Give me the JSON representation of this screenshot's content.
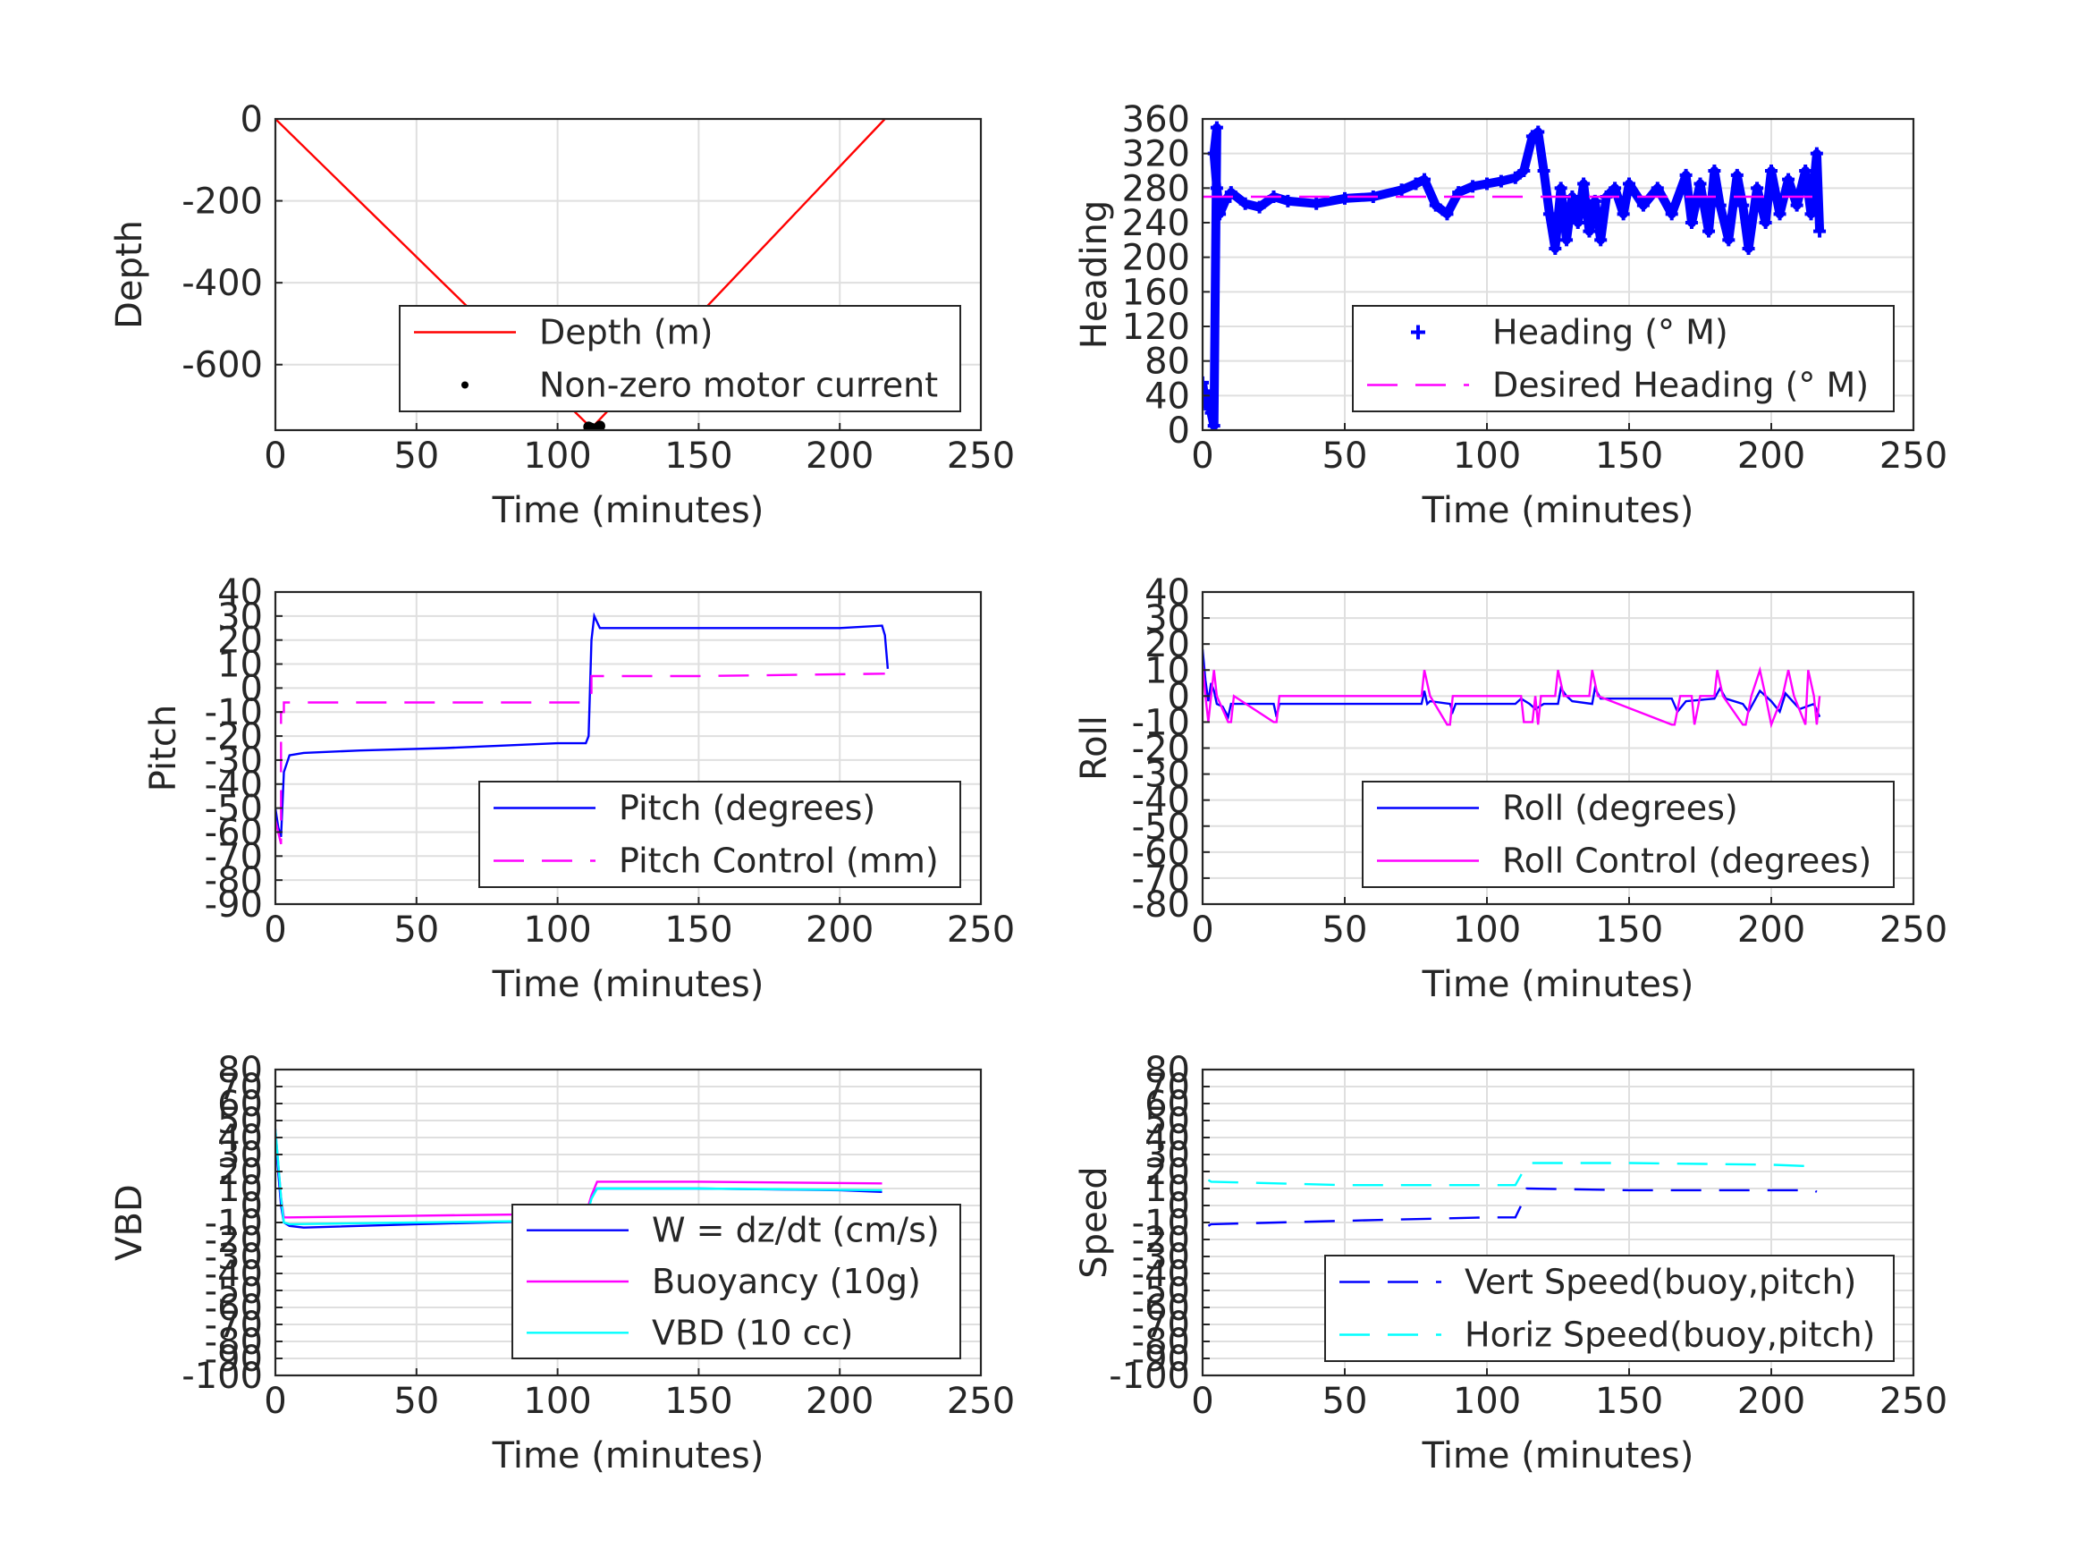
{
  "chart_data": [
    {
      "id": "depth",
      "type": "line",
      "xlabel": "Time (minutes)",
      "ylabel": "Depth",
      "xlim": [
        0,
        250
      ],
      "ylim": [
        -760,
        0
      ],
      "xticks": [
        "0",
        "50",
        "100",
        "150",
        "200",
        "250"
      ],
      "yticks": [
        {
          "value": 0,
          "label": "0"
        },
        {
          "value": -200,
          "label": "-200"
        },
        {
          "value": -400,
          "label": "-400"
        },
        {
          "value": -600,
          "label": "-600"
        }
      ],
      "grid": true,
      "legend_position": "bottom-right",
      "series": [
        {
          "name": "Depth (m)",
          "color": "#ff0000",
          "style": "solid",
          "x": [
            0,
            112,
            216
          ],
          "y": [
            0,
            -755,
            0
          ]
        },
        {
          "name": "Non-zero motor current",
          "color": "#000000",
          "style": "dot",
          "x": [
            111,
            112,
            113,
            114,
            115
          ],
          "y": [
            -752,
            -755,
            -757,
            -755,
            -750
          ]
        }
      ]
    },
    {
      "id": "heading",
      "type": "scatter",
      "xlabel": "Time (minutes)",
      "ylabel": "Heading",
      "xlim": [
        0,
        250
      ],
      "ylim": [
        0,
        360
      ],
      "xticks": [
        "0",
        "50",
        "100",
        "150",
        "200",
        "250"
      ],
      "yticks": [
        {
          "value": 0,
          "label": "0"
        },
        {
          "value": 40,
          "label": "40"
        },
        {
          "value": 80,
          "label": "80"
        },
        {
          "value": 120,
          "label": "120"
        },
        {
          "value": 160,
          "label": "160"
        },
        {
          "value": 200,
          "label": "200"
        },
        {
          "value": 240,
          "label": "240"
        },
        {
          "value": 280,
          "label": "280"
        },
        {
          "value": 320,
          "label": "320"
        },
        {
          "value": 360,
          "label": "360"
        }
      ],
      "grid": true,
      "legend_position": "bottom-right",
      "series": [
        {
          "name": "Heading (° M)",
          "color": "#0000ff",
          "style": "plus",
          "x": [
            0,
            1,
            2,
            3,
            4,
            5,
            4,
            5,
            6,
            8,
            10,
            15,
            20,
            25,
            30,
            40,
            50,
            60,
            70,
            75,
            78,
            82,
            86,
            90,
            95,
            100,
            105,
            110,
            113,
            116,
            118,
            120,
            122,
            124,
            126,
            128,
            130,
            132,
            134,
            136,
            138,
            140,
            142,
            145,
            148,
            150,
            155,
            160,
            165,
            170,
            172,
            175,
            178,
            180,
            182,
            185,
            188,
            190,
            192,
            195,
            198,
            200,
            203,
            206,
            209,
            212,
            214,
            216,
            217
          ],
          "y": [
            55,
            30,
            40,
            20,
            5,
            350,
            320,
            280,
            250,
            265,
            275,
            262,
            258,
            270,
            265,
            262,
            268,
            270,
            278,
            285,
            290,
            260,
            250,
            275,
            282,
            285,
            288,
            292,
            300,
            340,
            345,
            300,
            250,
            210,
            280,
            220,
            270,
            240,
            285,
            230,
            265,
            220,
            270,
            280,
            250,
            285,
            260,
            280,
            250,
            295,
            240,
            285,
            230,
            300,
            260,
            220,
            295,
            260,
            210,
            280,
            240,
            300,
            250,
            290,
            260,
            300,
            250,
            320,
            230
          ]
        },
        {
          "name": "Desired Heading (° M)",
          "color": "#ff00ff",
          "style": "dash",
          "x": [
            0,
            216
          ],
          "y": [
            270,
            270
          ]
        }
      ]
    },
    {
      "id": "pitch",
      "type": "line",
      "xlabel": "Time (minutes)",
      "ylabel": "Pitch",
      "xlim": [
        0,
        250
      ],
      "ylim": [
        -90,
        40
      ],
      "xticks": [
        "0",
        "50",
        "100",
        "150",
        "200",
        "250"
      ],
      "yticks": [
        {
          "value": 40,
          "label": "40"
        },
        {
          "value": 30,
          "label": "30"
        },
        {
          "value": 20,
          "label": "20"
        },
        {
          "value": 10,
          "label": "10"
        },
        {
          "value": 0,
          "label": "0"
        },
        {
          "value": -10,
          "label": "-10"
        },
        {
          "value": -20,
          "label": "-20"
        },
        {
          "value": -30,
          "label": "-30"
        },
        {
          "value": -40,
          "label": "-40"
        },
        {
          "value": -50,
          "label": "-50"
        },
        {
          "value": -60,
          "label": "-60"
        },
        {
          "value": -70,
          "label": "-70"
        },
        {
          "value": -80,
          "label": "-80"
        },
        {
          "value": -90,
          "label": "-90"
        }
      ],
      "grid": true,
      "legend_position": "bottom-right",
      "series": [
        {
          "name": "Pitch (degrees)",
          "color": "#0000ff",
          "style": "solid",
          "x": [
            0,
            1,
            2,
            3,
            5,
            10,
            30,
            60,
            80,
            100,
            110,
            111,
            112,
            113,
            115,
            130,
            160,
            200,
            215,
            216,
            217
          ],
          "y": [
            -50,
            -58,
            -62,
            -35,
            -28,
            -27,
            -26,
            -25,
            -24,
            -23,
            -23,
            -20,
            20,
            30,
            25,
            25,
            25,
            25,
            26,
            22,
            8
          ]
        },
        {
          "name": "Pitch Control (mm)",
          "color": "#ff00ff",
          "style": "dash",
          "x": [
            0,
            2,
            2,
            3,
            3,
            110,
            111,
            112,
            112,
            113,
            150,
            216
          ],
          "y": [
            -55,
            -65,
            -10,
            -10,
            -6,
            -6,
            -6,
            -2,
            5,
            5,
            5,
            6
          ]
        }
      ]
    },
    {
      "id": "roll",
      "type": "line",
      "xlabel": "Time (minutes)",
      "ylabel": "Roll",
      "xlim": [
        0,
        250
      ],
      "ylim": [
        -80,
        40
      ],
      "xticks": [
        "0",
        "50",
        "100",
        "150",
        "200",
        "250"
      ],
      "yticks": [
        {
          "value": 40,
          "label": "40"
        },
        {
          "value": 30,
          "label": "30"
        },
        {
          "value": 20,
          "label": "20"
        },
        {
          "value": 10,
          "label": "10"
        },
        {
          "value": 0,
          "label": "0"
        },
        {
          "value": -10,
          "label": "-10"
        },
        {
          "value": -20,
          "label": "-20"
        },
        {
          "value": -30,
          "label": "-30"
        },
        {
          "value": -40,
          "label": "-40"
        },
        {
          "value": -50,
          "label": "-50"
        },
        {
          "value": -60,
          "label": "-60"
        },
        {
          "value": -70,
          "label": "-70"
        },
        {
          "value": -80,
          "label": "-80"
        }
      ],
      "grid": true,
      "legend_position": "bottom-right",
      "series": [
        {
          "name": "Roll (degrees)",
          "color": "#0000ff",
          "style": "solid",
          "x": [
            0,
            1,
            2,
            3,
            4,
            5,
            7,
            9,
            10,
            25,
            26,
            27,
            77,
            78,
            79,
            80,
            87,
            88,
            89,
            110,
            112,
            115,
            117,
            120,
            125,
            126,
            128,
            130,
            137,
            138,
            140,
            165,
            167,
            170,
            180,
            182,
            184,
            190,
            192,
            196,
            200,
            203,
            205,
            210,
            215,
            217
          ],
          "y": [
            18,
            6,
            -2,
            5,
            2,
            -3,
            -4,
            -8,
            -3,
            -3,
            -8,
            -3,
            -3,
            2,
            -3,
            -2,
            -3,
            -6,
            -3,
            -3,
            -1,
            -3,
            -5,
            -3,
            -3,
            3,
            0,
            -2,
            -3,
            3,
            -1,
            -1,
            -6,
            -2,
            -1,
            3,
            -1,
            -3,
            -6,
            2,
            -2,
            -6,
            1,
            -5,
            -3,
            -8
          ]
        },
        {
          "name": "Roll Control (degrees)",
          "color": "#ff00ff",
          "style": "solid",
          "x": [
            0,
            1,
            2,
            3,
            4,
            5,
            9,
            10,
            11,
            25,
            26,
            27,
            77,
            78,
            80,
            86,
            87,
            88,
            112,
            113,
            116,
            117,
            118,
            119,
            124,
            125,
            127,
            136,
            137,
            139,
            165,
            166,
            168,
            172,
            173,
            175,
            180,
            181,
            183,
            190,
            191,
            193,
            196,
            198,
            200,
            204,
            206,
            208,
            212,
            213,
            215,
            216,
            217
          ],
          "y": [
            12,
            0,
            -10,
            0,
            10,
            0,
            -10,
            -10,
            0,
            -10,
            -10,
            0,
            0,
            10,
            0,
            -11,
            -11,
            0,
            0,
            -10,
            -10,
            0,
            -11,
            0,
            0,
            10,
            0,
            0,
            10,
            0,
            -11,
            -11,
            0,
            0,
            -11,
            0,
            0,
            10,
            0,
            -11,
            -11,
            0,
            10,
            0,
            -11,
            0,
            10,
            0,
            -11,
            10,
            0,
            -11,
            0
          ]
        }
      ]
    },
    {
      "id": "vbd",
      "type": "line",
      "xlabel": "Time (minutes)",
      "ylabel": "VBD",
      "xlim": [
        0,
        250
      ],
      "ylim": [
        -100,
        80
      ],
      "xticks": [
        "0",
        "50",
        "100",
        "150",
        "200",
        "250"
      ],
      "yticks": [
        {
          "value": 80,
          "label": "80"
        },
        {
          "value": 70,
          "label": "70"
        },
        {
          "value": 60,
          "label": "60"
        },
        {
          "value": 50,
          "label": "50"
        },
        {
          "value": 40,
          "label": "40"
        },
        {
          "value": 30,
          "label": "30"
        },
        {
          "value": 20,
          "label": "20"
        },
        {
          "value": 10,
          "label": "10"
        },
        {
          "value": 0,
          "label": "0"
        },
        {
          "value": -10,
          "label": "-10"
        },
        {
          "value": -20,
          "label": "-20"
        },
        {
          "value": -30,
          "label": "-30"
        },
        {
          "value": -40,
          "label": "-40"
        },
        {
          "value": -50,
          "label": "-50"
        },
        {
          "value": -60,
          "label": "-60"
        },
        {
          "value": -70,
          "label": "-70"
        },
        {
          "value": -80,
          "label": "-80"
        },
        {
          "value": -90,
          "label": "-90"
        },
        {
          "value": -100,
          "label": "-100"
        }
      ],
      "grid": true,
      "legend_position": "bottom-right",
      "series": [
        {
          "name": "W = dz/dt (cm/s)",
          "color": "#0000ff",
          "style": "solid",
          "x": [
            0,
            2,
            3,
            5,
            10,
            50,
            100,
            110,
            112,
            114,
            120,
            150,
            200,
            215
          ],
          "y": [
            40,
            0,
            -10,
            -12,
            -13,
            -11,
            -9,
            -8,
            5,
            10,
            10,
            10,
            9,
            8
          ]
        },
        {
          "name": "Buoyancy (10g)",
          "color": "#ff00ff",
          "style": "solid",
          "x": [
            0,
            2,
            3,
            5,
            50,
            100,
            110,
            112,
            114,
            150,
            215
          ],
          "y": [
            45,
            5,
            -7,
            -7,
            -6,
            -5,
            -5,
            6,
            14,
            14,
            13
          ]
        },
        {
          "name": "VBD (10 cc)",
          "color": "#00ffff",
          "style": "solid",
          "x": [
            0,
            2,
            3,
            5,
            50,
            100,
            110,
            112,
            114,
            150,
            215
          ],
          "y": [
            45,
            5,
            -10,
            -11,
            -10,
            -9,
            -8,
            4,
            10,
            10,
            9
          ]
        }
      ]
    },
    {
      "id": "speed",
      "type": "line",
      "xlabel": "Time (minutes)",
      "ylabel": "Speed",
      "xlim": [
        0,
        250
      ],
      "ylim": [
        -100,
        80
      ],
      "xticks": [
        "0",
        "50",
        "100",
        "150",
        "200",
        "250"
      ],
      "yticks": [
        {
          "value": 80,
          "label": "80"
        },
        {
          "value": 70,
          "label": "70"
        },
        {
          "value": 60,
          "label": "60"
        },
        {
          "value": 50,
          "label": "50"
        },
        {
          "value": 40,
          "label": "40"
        },
        {
          "value": 30,
          "label": "30"
        },
        {
          "value": 20,
          "label": "20"
        },
        {
          "value": 10,
          "label": "10"
        },
        {
          "value": 0,
          "label": "0"
        },
        {
          "value": -10,
          "label": "-10"
        },
        {
          "value": -20,
          "label": "-20"
        },
        {
          "value": -30,
          "label": "-30"
        },
        {
          "value": -40,
          "label": "-40"
        },
        {
          "value": -50,
          "label": "-50"
        },
        {
          "value": -60,
          "label": "-60"
        },
        {
          "value": -70,
          "label": "-70"
        },
        {
          "value": -80,
          "label": "-80"
        },
        {
          "value": -90,
          "label": "-90"
        },
        {
          "value": -100,
          "label": "-100"
        }
      ],
      "grid": true,
      "legend_position": "bottom-right",
      "series": [
        {
          "name": "Vert Speed(buoy,pitch)",
          "color": "#0000ff",
          "style": "dash",
          "x": [
            2,
            3,
            50,
            100,
            110,
            112,
            114,
            150,
            200,
            215,
            216
          ],
          "y": [
            -12,
            -11,
            -9,
            -7,
            -7,
            0,
            10,
            9,
            9,
            9,
            8
          ]
        },
        {
          "name": "Horiz Speed(buoy,pitch)",
          "color": "#00ffff",
          "style": "dash",
          "x": [
            2,
            3,
            50,
            100,
            110,
            112,
            114,
            150,
            200,
            215,
            216
          ],
          "y": [
            15,
            14,
            12,
            12,
            12,
            18,
            25,
            25,
            24,
            23,
            22
          ]
        }
      ]
    }
  ]
}
